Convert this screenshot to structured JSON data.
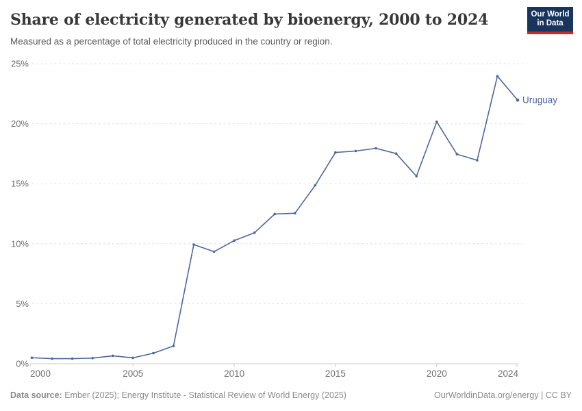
{
  "header": {
    "title": "Share of electricity generated by bioenergy, 2000 to 2024",
    "subtitle": "Measured as a percentage of total electricity produced in the country or region.",
    "logo": {
      "line1": "Our World",
      "line2": "in Data"
    }
  },
  "chart_data": {
    "type": "line",
    "title": "Share of electricity generated by bioenergy, 2000 to 2024",
    "x": [
      2000,
      2001,
      2002,
      2003,
      2004,
      2005,
      2006,
      2007,
      2008,
      2009,
      2010,
      2011,
      2012,
      2013,
      2014,
      2015,
      2016,
      2017,
      2018,
      2019,
      2020,
      2021,
      2022,
      2023,
      2024
    ],
    "series": [
      {
        "name": "Uruguay",
        "color": "#4C669C",
        "values": [
          0.5,
          0.42,
          0.42,
          0.47,
          0.66,
          0.49,
          0.88,
          1.48,
          9.93,
          9.34,
          10.26,
          10.92,
          12.48,
          12.54,
          14.87,
          17.6,
          17.72,
          17.95,
          17.51,
          15.62,
          20.16,
          17.46,
          16.95,
          23.96,
          21.97
        ]
      }
    ],
    "xlabel": "",
    "ylabel": "",
    "xlim": [
      2000,
      2024
    ],
    "ylim": [
      0,
      25
    ],
    "x_ticks": [
      2000,
      2005,
      2010,
      2015,
      2020,
      2024
    ],
    "x_tick_labels": [
      "2000",
      "2005",
      "2010",
      "2015",
      "2020",
      "2024"
    ],
    "y_ticks": [
      0,
      5,
      10,
      15,
      20,
      25
    ],
    "y_tick_labels": [
      "0%",
      "5%",
      "10%",
      "15%",
      "20%",
      "25%"
    ],
    "grid": "horizontal-dashed",
    "legend_position": "end-of-line-label",
    "end_label": "Uruguay"
  },
  "footer": {
    "source_label": "Data source:",
    "source_text": " Ember (2025); Energy Institute - Statistical Review of World Energy (2025)",
    "credit": "OurWorldinData.org/energy | CC BY"
  },
  "colors": {
    "line": "#4C669C",
    "gridline": "#dcdcdc",
    "axis": "#c8c8c8",
    "tick_label": "#6e6e6e",
    "title": "#383838",
    "subtitle": "#5a5a5a",
    "footer": "#8a8a8a",
    "logo_bg": "#17355D",
    "logo_accent": "#C72A2B"
  }
}
